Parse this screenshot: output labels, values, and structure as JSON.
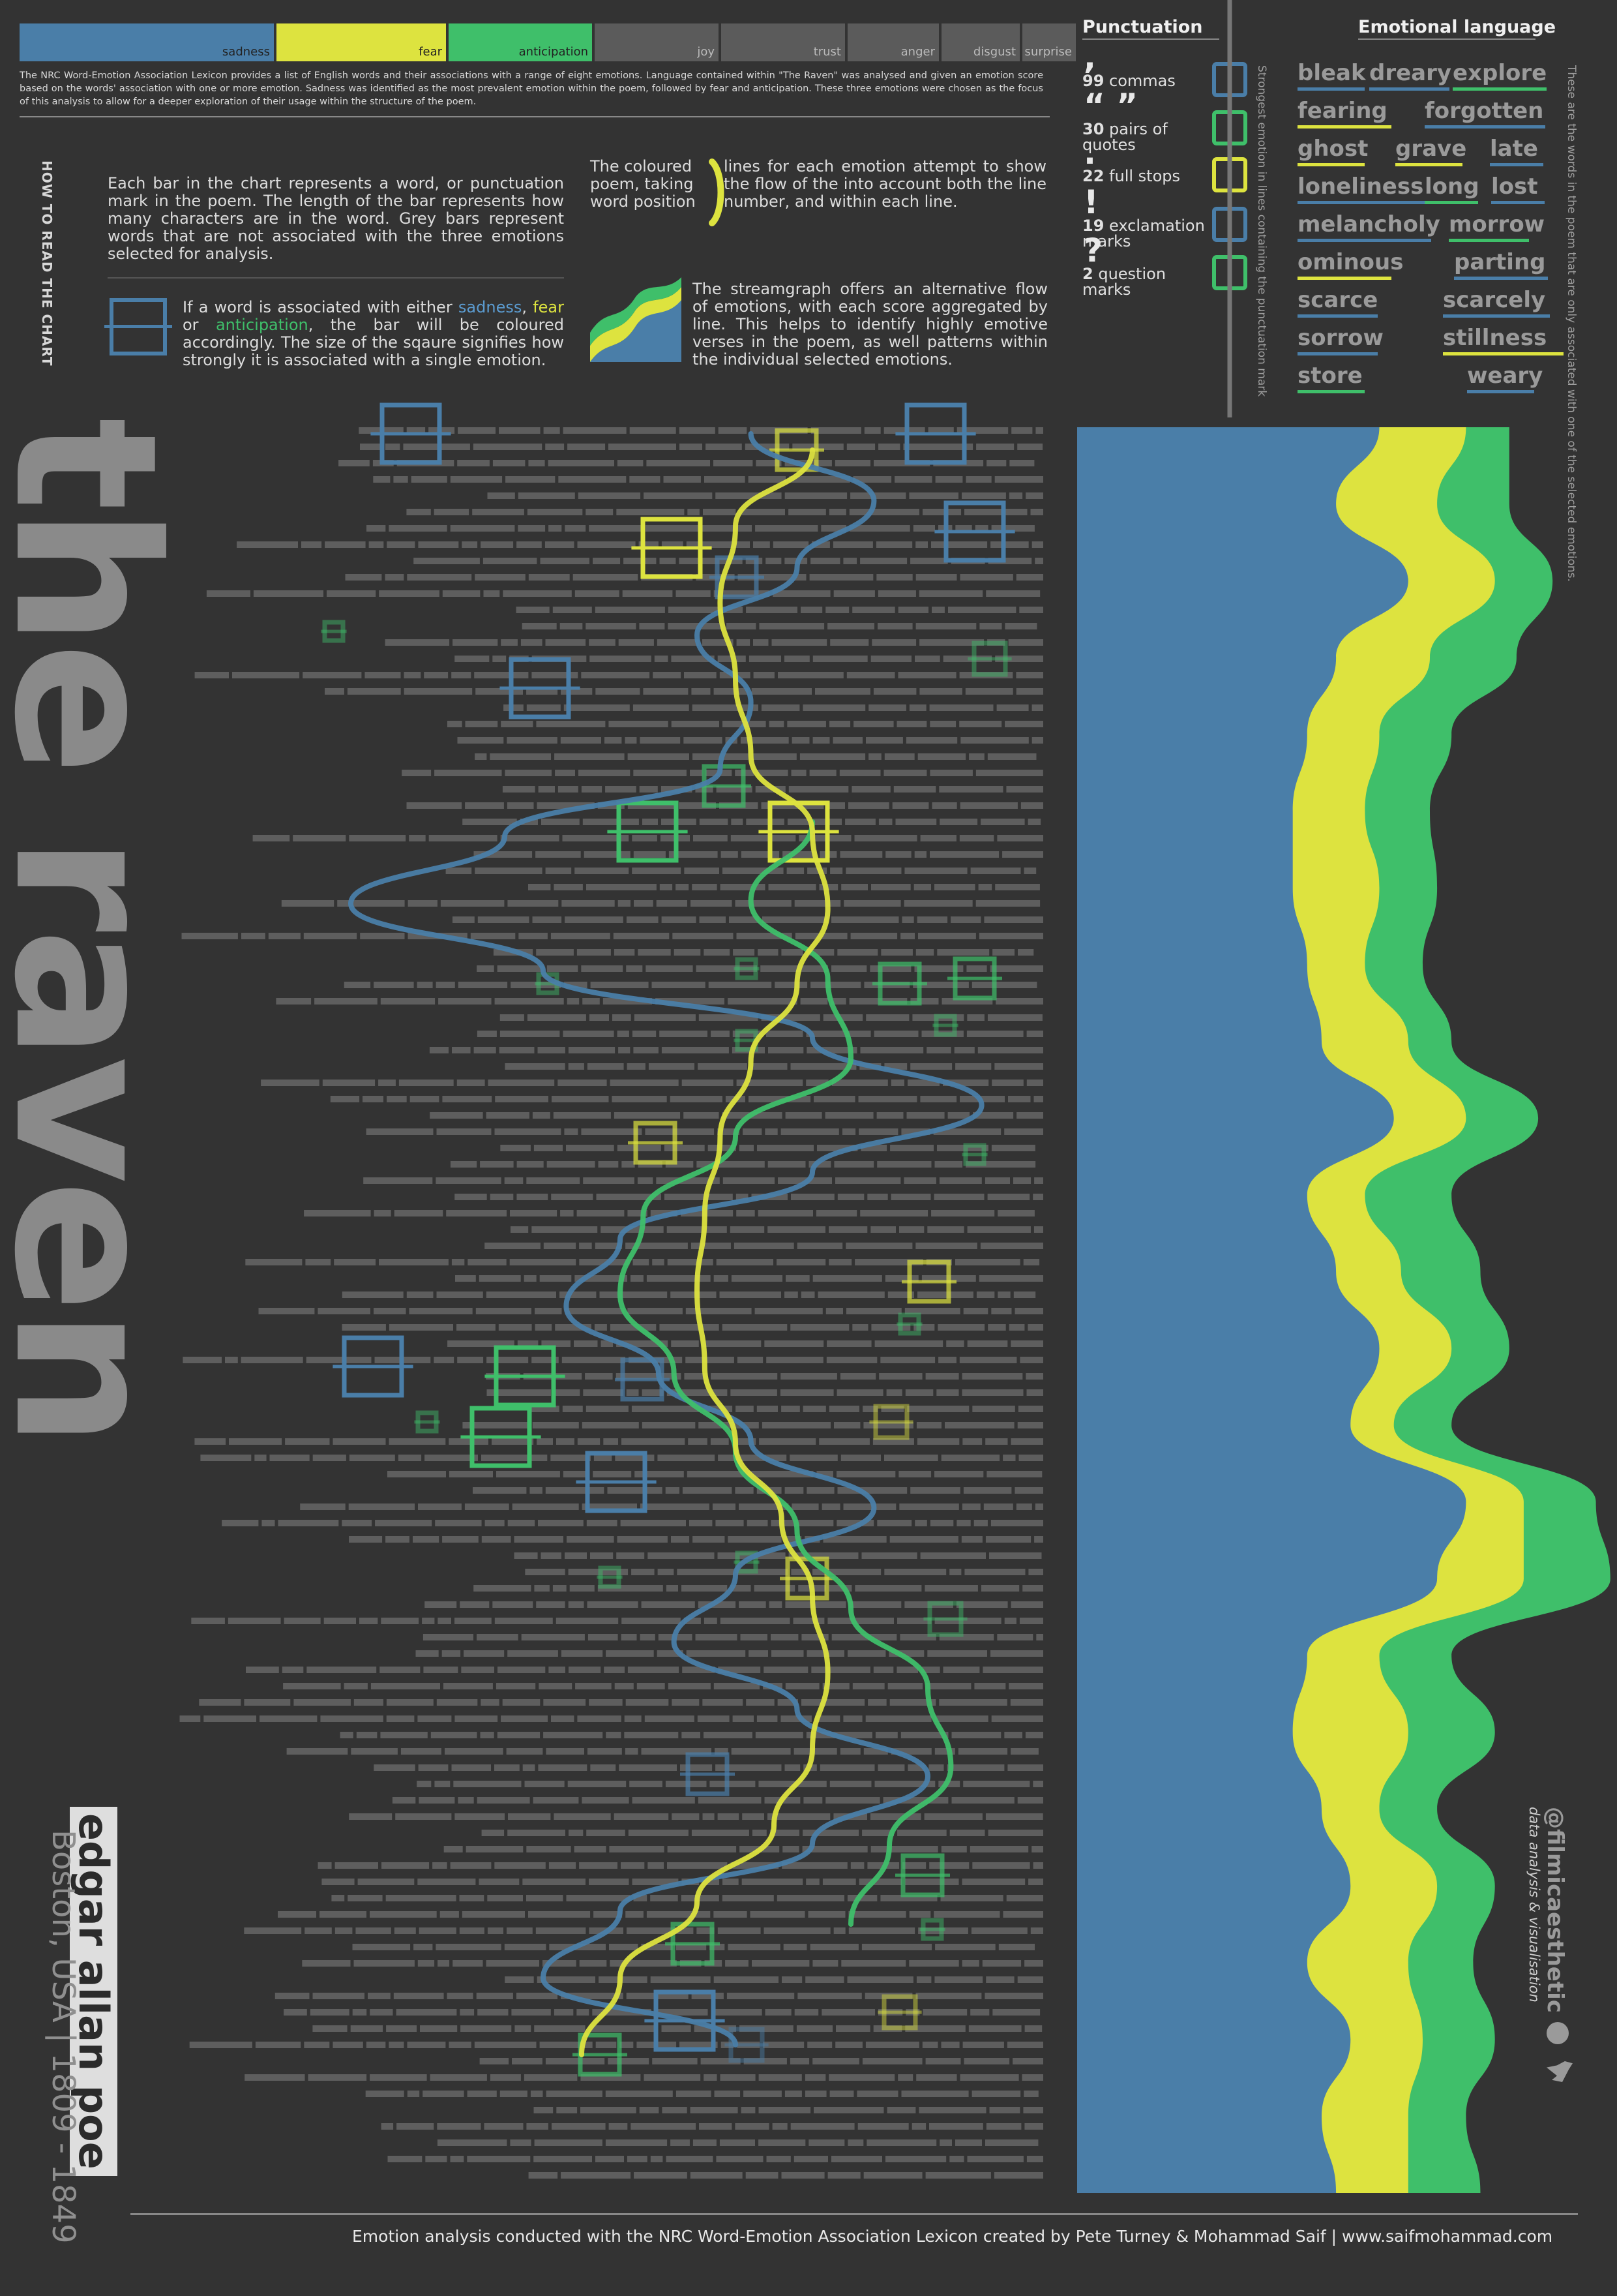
{
  "legend": {
    "emotions": [
      {
        "label": "sadness",
        "color": "#4a7ea8",
        "primary": true
      },
      {
        "label": "fear",
        "color": "#dde33f",
        "primary": true
      },
      {
        "label": "anticipation",
        "color": "#3fbf6a",
        "primary": true
      },
      {
        "label": "joy",
        "color": "#5a5a5a",
        "primary": false
      },
      {
        "label": "trust",
        "color": "#5a5a5a",
        "primary": false
      },
      {
        "label": "anger",
        "color": "#5a5a5a",
        "primary": false
      },
      {
        "label": "disgust",
        "color": "#5a5a5a",
        "primary": false
      },
      {
        "label": "surprise",
        "color": "#5a5a5a",
        "primary": false
      }
    ],
    "intro": "The NRC Word-Emotion Association Lexicon provides a list of English words and their associations with a range of eight emotions. Language contained within \"The Raven\" was analysed and given an emotion score based on the words' association with one or more emotion. Sadness was identified as the most prevalent emotion within the poem, followed by fear and anticipation. These three emotions were chosen as the focus of this analysis to allow for a deeper exploration of their usage within the structure of the poem."
  },
  "how_to": {
    "heading": "HOW TO READ THE CHART",
    "bars": "Each bar in the chart represents a word, or punctuation mark in the poem. The length of the bar represents how many characters are in the word. Grey bars represent words that are not associated with the three emotions selected for analysis.",
    "squares_pre": "If a word is associated with either ",
    "squares_sad": "sadness",
    "squares_sep": ", ",
    "squares_fear": "fear",
    "squares_or": " or ",
    "squares_ant": "anticipation",
    "squares_post": ", the bar will be coloured accordingly. The size of the sqaure signifies how strongly it is associated with a single emotion.",
    "lines_a": "The coloured poem, taking word position",
    "lines_b": "lines for each emotion attempt to show the flow of the into account both the line number, and within each line.",
    "stream": "The streamgraph offers an alternative flow of emotions, with each score aggregated by line. This helps to identify highly emotive verses in the poem, as well patterns within the individual selected emotions."
  },
  "title": "the raven",
  "poet": {
    "name": "edgar allan poe",
    "place": "Boston, USA",
    "years": "1809 - 1849"
  },
  "punctuation": {
    "heading": "Punctuation",
    "items": [
      {
        "glyph": ",",
        "count": "99",
        "label": "commas"
      },
      {
        "glyph": "“ ”",
        "count": "30",
        "label": "pairs of quotes"
      },
      {
        "glyph": ".",
        "count": "22",
        "label": "full stops"
      },
      {
        "glyph": "!",
        "count": "19",
        "label": "exclamation marks"
      },
      {
        "glyph": "?",
        "count": "2",
        "label": "question marks"
      }
    ],
    "side_note": "Strongest emotion in lines containing the punctuation mark",
    "emotion_by_mark": [
      "sadness",
      "anticipation",
      "fear",
      "sadness",
      "anticipation"
    ]
  },
  "emotional_language": {
    "heading": "Emotional language",
    "side_note": "These are the words in the poem that are only associated with one of the selected emotions.",
    "words": [
      {
        "text": "bleak",
        "emotions": [
          "sadness"
        ]
      },
      {
        "text": "dreary",
        "emotions": [
          "sadness"
        ]
      },
      {
        "text": "explore",
        "emotions": [
          "anticipation"
        ]
      },
      {
        "text": "fearing",
        "emotions": [
          "fear"
        ]
      },
      {
        "text": "forgotten",
        "emotions": [
          "sadness"
        ]
      },
      {
        "text": "ghost",
        "emotions": [
          "fear"
        ]
      },
      {
        "text": "grave",
        "emotions": [
          "fear"
        ]
      },
      {
        "text": "late",
        "emotions": [
          "sadness"
        ]
      },
      {
        "text": "loneliness",
        "emotions": [
          "sadness"
        ]
      },
      {
        "text": "long",
        "emotions": [
          "anticipation"
        ]
      },
      {
        "text": "lost",
        "emotions": [
          "sadness"
        ]
      },
      {
        "text": "melancholy",
        "emotions": [
          "sadness"
        ]
      },
      {
        "text": "morrow",
        "emotions": [
          "anticipation"
        ]
      },
      {
        "text": "ominous",
        "emotions": [
          "fear"
        ]
      },
      {
        "text": "parting",
        "emotions": [
          "sadness"
        ]
      },
      {
        "text": "scarce",
        "emotions": [
          "sadness"
        ]
      },
      {
        "text": "scarcely",
        "emotions": [
          "sadness"
        ]
      },
      {
        "text": "sorrow",
        "emotions": [
          "sadness"
        ]
      },
      {
        "text": "stillness",
        "emotions": [
          "fear"
        ]
      },
      {
        "text": "store",
        "emotions": [
          "anticipation"
        ]
      },
      {
        "text": "weary",
        "emotions": [
          "sadness"
        ]
      }
    ]
  },
  "credit": {
    "handle": "@filmicaesthetic",
    "role": "data analysis & visualisation"
  },
  "footer": "Emotion analysis conducted with the NRC Word-Emotion Association Lexicon created by Pete Turney & Mohammad Saif  |  www.saifmohammad.com",
  "colors": {
    "sadness": "#4a7ea8",
    "fear": "#dde33f",
    "anticipation": "#3fbf6a",
    "grey": "#5b5b5b",
    "bg": "#333333"
  },
  "chart_data": [
    {
      "type": "bar",
      "description_source": "word bars with emotion squares and flow lines",
      "lines": 108,
      "flow_x_fraction": {
        "sadness": [
          0.62,
          0.78,
          0.68,
          0.55,
          0.62,
          0.58,
          0.3,
          0.1,
          0.35,
          0.7,
          0.92,
          0.7,
          0.45,
          0.38,
          0.5,
          0.62,
          0.78,
          0.6,
          0.52,
          0.68,
          0.85,
          0.7,
          0.45,
          0.35,
          0.6
        ],
        "fear": [
          0.7,
          0.6,
          0.58,
          0.6,
          0.62,
          0.7,
          0.72,
          0.68,
          0.62,
          0.58,
          0.56,
          0.55,
          0.56,
          0.6,
          0.66,
          0.7,
          0.72,
          0.7,
          0.65,
          0.55,
          0.45,
          0.4
        ],
        "anticipation": [
          0.7,
          0.62,
          0.72,
          0.75,
          0.6,
          0.48,
          0.45,
          0.52,
          0.6,
          0.68,
          0.75,
          0.85,
          0.88,
          0.8,
          0.75
        ]
      }
    },
    {
      "type": "area",
      "series": [
        {
          "name": "sadness",
          "values": [
            0.22,
            0.16,
            0.26,
            0.16,
            0.12,
            0.1,
            0.1,
            0.12,
            0.14,
            0.24,
            0.12,
            0.16,
            0.22,
            0.18,
            0.34,
            0.3,
            0.12,
            0.1,
            0.14,
            0.18,
            0.12,
            0.18,
            0.14,
            0.16
          ]
        },
        {
          "name": "fear",
          "values": [
            0.12,
            0.14,
            0.12,
            0.13,
            0.1,
            0.1,
            0.12,
            0.08,
            0.12,
            0.1,
            0.08,
            0.09,
            0.1,
            0.06,
            0.08,
            0.12,
            0.1,
            0.16,
            0.08,
            0.12,
            0.14,
            0.1,
            0.12,
            0.1
          ]
        },
        {
          "name": "anticipation",
          "values": [
            0.06,
            0.1,
            0.08,
            0.12,
            0.1,
            0.09,
            0.08,
            0.08,
            0.06,
            0.1,
            0.12,
            0.11,
            0.08,
            0.08,
            0.1,
            0.12,
            0.1,
            0.12,
            0.08,
            0.08,
            0.09,
            0.1,
            0.08,
            0.1
          ]
        }
      ]
    }
  ]
}
